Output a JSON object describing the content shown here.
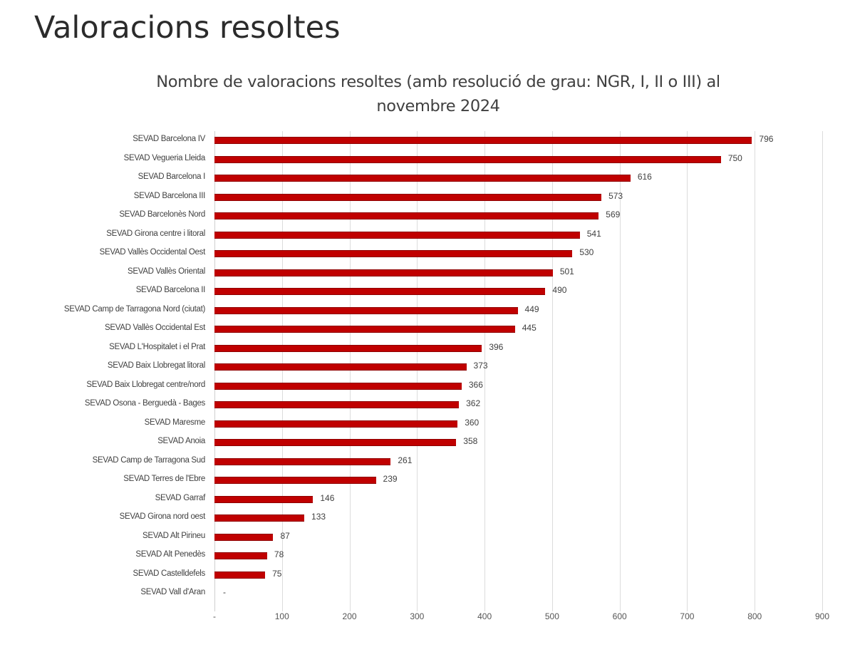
{
  "page": {
    "title": "Valoracions resoltes"
  },
  "chart_data": {
    "type": "bar",
    "orientation": "horizontal",
    "title": "Nombre de valoracions resoltes (amb resolució de grau: NGR, I, II o III) al novembre 2024",
    "title_lines": [
      "Nombre de valoracions resoltes (amb resolució de grau: NGR, I, II o III) al",
      "novembre 2024"
    ],
    "xlabel": "",
    "ylabel": "",
    "xlim": [
      0,
      900
    ],
    "grid": true,
    "legend": null,
    "bar_color": "#c00000",
    "x_ticks": [
      "-",
      "100",
      "200",
      "300",
      "400",
      "500",
      "600",
      "700",
      "800",
      "900"
    ],
    "categories": [
      "SEVAD Barcelona IV",
      "SEVAD Vegueria Lleida",
      "SEVAD Barcelona I",
      "SEVAD Barcelona III",
      "SEVAD Barcelonès Nord",
      "SEVAD Girona centre i litoral",
      "SEVAD Vallès Occidental Oest",
      "SEVAD Vallès Oriental",
      "SEVAD Barcelona II",
      "SEVAD Camp de Tarragona Nord (ciutat)",
      "SEVAD Vallès Occidental Est",
      "SEVAD L'Hospitalet i el Prat",
      "SEVAD Baix Llobregat litoral",
      "SEVAD Baix Llobregat centre/nord",
      "SEVAD Osona - Berguedà - Bages",
      "SEVAD Maresme",
      "SEVAD Anoia",
      "SEVAD Camp de Tarragona Sud",
      "SEVAD Terres de l'Ebre",
      "SEVAD Garraf",
      "SEVAD Girona nord oest",
      "SEVAD Alt Pirineu",
      "SEVAD Alt Penedès",
      "SEVAD Castelldefels",
      "SEVAD Vall d'Aran"
    ],
    "values": [
      796,
      750,
      616,
      573,
      569,
      541,
      530,
      501,
      490,
      449,
      445,
      396,
      373,
      366,
      362,
      360,
      358,
      261,
      239,
      146,
      133,
      87,
      78,
      75,
      0
    ],
    "value_labels": [
      "796",
      "750",
      "616",
      "573",
      "569",
      "541",
      "530",
      "501",
      "490",
      "449",
      "445",
      "396",
      "373",
      "366",
      "362",
      "360",
      "358",
      "261",
      "239",
      "146",
      "133",
      "87",
      "78",
      "75",
      "-"
    ]
  }
}
